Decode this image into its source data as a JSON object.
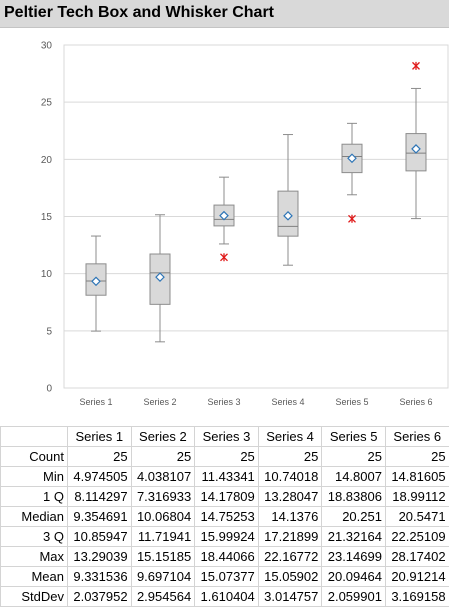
{
  "title": "Peltier Tech Box and Whisker Chart",
  "colors": {
    "box_fill": "#d9d9d9",
    "box_stroke": "#8c8c8c",
    "median": "#7f7f7f",
    "mean_marker_fill": "#ffffff",
    "mean_marker_stroke": "#2e75b6",
    "outlier": "#e01b1b",
    "grid": "#d9d9d9",
    "axis_text": "#595959"
  },
  "chart_data": {
    "type": "box",
    "title": "Peltier Tech Box and Whisker Chart",
    "categories": [
      "Series 1",
      "Series 2",
      "Series 3",
      "Series 4",
      "Series 5",
      "Series 6"
    ],
    "ylim": [
      0,
      30
    ],
    "yticks": [
      "0",
      "5",
      "10",
      "15",
      "20",
      "25",
      "30"
    ],
    "grid": true,
    "whisker_low": [
      4.974505,
      4.038107,
      12.6,
      10.74018,
      16.9,
      14.81605
    ],
    "q1": [
      8.114297,
      7.316933,
      14.17809,
      13.28047,
      18.83806,
      18.99112
    ],
    "median": [
      9.354691,
      10.06804,
      14.75253,
      14.1376,
      20.251,
      20.5471
    ],
    "q3": [
      10.85947,
      11.71941,
      15.99924,
      17.21899,
      21.32164,
      22.25109
    ],
    "whisker_high": [
      13.29039,
      15.15185,
      18.44066,
      22.16772,
      23.14699,
      26.2
    ],
    "mean": [
      9.331536,
      9.697104,
      15.07377,
      15.05902,
      20.09464,
      20.91214
    ],
    "outliers": [
      [],
      [],
      [
        11.43341
      ],
      [],
      [
        14.8007
      ],
      [
        28.17402
      ]
    ]
  },
  "table": {
    "headers": [
      "",
      "Series 1",
      "Series 2",
      "Series 3",
      "Series 4",
      "Series 5",
      "Series 6"
    ],
    "rows": [
      {
        "label": "Count",
        "values": [
          "25",
          "25",
          "25",
          "25",
          "25",
          "25"
        ]
      },
      {
        "label": "Min",
        "values": [
          "4.974505",
          "4.038107",
          "11.43341",
          "10.74018",
          "14.8007",
          "14.81605"
        ]
      },
      {
        "label": "1 Q",
        "values": [
          "8.114297",
          "7.316933",
          "14.17809",
          "13.28047",
          "18.83806",
          "18.99112"
        ]
      },
      {
        "label": "Median",
        "values": [
          "9.354691",
          "10.06804",
          "14.75253",
          "14.1376",
          "20.251",
          "20.5471"
        ]
      },
      {
        "label": "3 Q",
        "values": [
          "10.85947",
          "11.71941",
          "15.99924",
          "17.21899",
          "21.32164",
          "22.25109"
        ]
      },
      {
        "label": "Max",
        "values": [
          "13.29039",
          "15.15185",
          "18.44066",
          "22.16772",
          "23.14699",
          "28.17402"
        ]
      },
      {
        "label": "Mean",
        "values": [
          "9.331536",
          "9.697104",
          "15.07377",
          "15.05902",
          "20.09464",
          "20.91214"
        ]
      },
      {
        "label": "StdDev",
        "values": [
          "2.037952",
          "2.954564",
          "1.610404",
          "3.014757",
          "2.059901",
          "3.169158"
        ]
      }
    ]
  }
}
